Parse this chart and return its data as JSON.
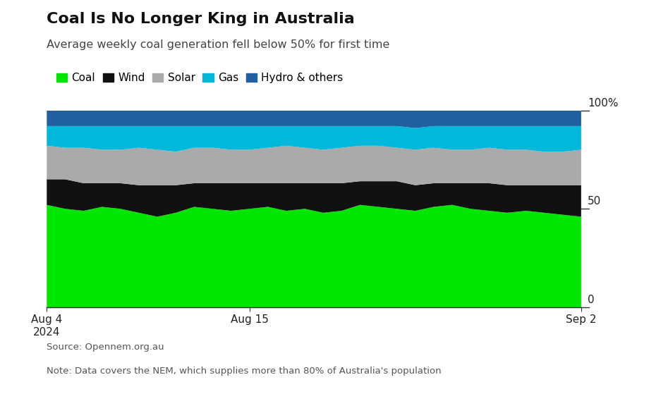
{
  "title": "Coal Is No Longer King in Australia",
  "subtitle": "Average weekly coal generation fell below 50% for first time",
  "source": "Source: Opennem.org.au",
  "note": "Note: Data covers the NEM, which supplies more than 80% of Australia's population",
  "legend_labels": [
    "Coal",
    "Wind",
    "Solar",
    "Gas",
    "Hydro & others"
  ],
  "legend_colors": [
    "#00e600",
    "#111111",
    "#aaaaaa",
    "#00b8d9",
    "#2060a0"
  ],
  "x_tick_labels": [
    "Aug 4\n2024",
    "Aug 15",
    "Sep 2"
  ],
  "x_tick_positions": [
    0,
    11,
    29
  ],
  "ytick_labels": [
    "0",
    "50",
    "100%"
  ],
  "ytick_values": [
    0,
    50,
    100
  ],
  "background_color": "#ffffff",
  "n_points": 30,
  "coal": [
    52,
    50,
    49,
    51,
    50,
    48,
    46,
    48,
    51,
    50,
    49,
    50,
    51,
    49,
    50,
    48,
    49,
    52,
    51,
    50,
    49,
    51,
    52,
    50,
    49,
    48,
    49,
    48,
    47,
    46
  ],
  "wind": [
    13,
    15,
    14,
    12,
    13,
    14,
    16,
    14,
    12,
    13,
    14,
    13,
    12,
    14,
    13,
    15,
    14,
    12,
    13,
    14,
    13,
    12,
    11,
    13,
    14,
    14,
    13,
    14,
    15,
    16
  ],
  "solar": [
    17,
    16,
    18,
    17,
    17,
    19,
    18,
    17,
    18,
    18,
    17,
    17,
    18,
    19,
    18,
    17,
    18,
    18,
    18,
    17,
    18,
    18,
    17,
    17,
    18,
    18,
    18,
    17,
    17,
    18
  ],
  "gas": [
    10,
    11,
    11,
    12,
    12,
    11,
    12,
    13,
    11,
    11,
    12,
    12,
    11,
    10,
    11,
    12,
    11,
    10,
    10,
    11,
    11,
    11,
    12,
    12,
    11,
    12,
    12,
    13,
    13,
    12
  ],
  "hydro": [
    8,
    8,
    8,
    8,
    8,
    8,
    8,
    8,
    8,
    8,
    8,
    8,
    8,
    8,
    8,
    8,
    8,
    8,
    8,
    8,
    9,
    8,
    8,
    8,
    8,
    8,
    8,
    8,
    8,
    8
  ]
}
